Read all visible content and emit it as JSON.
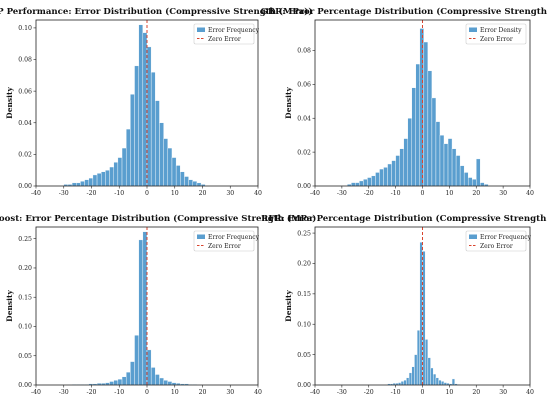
{
  "chart_data": [
    {
      "type": "bar",
      "title": "MLP Performance: Error Distribution (Compressive Strength (MPa))",
      "xlabel": "",
      "ylabel": "Density",
      "xlim": [
        -40,
        40
      ],
      "ylim": [
        0,
        0.105
      ],
      "xticks": [
        "-40",
        "-30",
        "-20",
        "-10",
        "0",
        "10",
        "20",
        "30",
        "40"
      ],
      "yticks": [
        "0.00",
        "0.02",
        "0.04",
        "0.06",
        "0.08",
        "0.10"
      ],
      "ytick_values": [
        0,
        0.02,
        0.04,
        0.06,
        0.08,
        0.1
      ],
      "bin_start": -30,
      "bin_width": 1.5,
      "values": [
        0.001,
        0.001,
        0.002,
        0.002,
        0.003,
        0.004,
        0.005,
        0.007,
        0.008,
        0.009,
        0.01,
        0.012,
        0.015,
        0.018,
        0.024,
        0.036,
        0.058,
        0.076,
        0.102,
        0.097,
        0.088,
        0.072,
        0.054,
        0.04,
        0.03,
        0.024,
        0.018,
        0.013,
        0.009,
        0.006,
        0.004,
        0.003,
        0.002,
        0.001
      ],
      "series": [
        {
          "name": "Error Frequency"
        },
        {
          "name": "Zero Error"
        }
      ],
      "legend_position": "top-right",
      "grid": false
    },
    {
      "type": "bar",
      "title": "GBR: Error Percentage Distribution (Compressive Strength (MPa))",
      "xlabel": "",
      "ylabel": "Density",
      "xlim": [
        -40,
        40
      ],
      "ylim": [
        0,
        0.098
      ],
      "xticks": [
        "-40",
        "-30",
        "-20",
        "-10",
        "0",
        "10",
        "20",
        "30",
        "40"
      ],
      "yticks": [
        "0.00",
        "0.02",
        "0.04",
        "0.06",
        "0.08"
      ],
      "ytick_values": [
        0,
        0.02,
        0.04,
        0.06,
        0.08
      ],
      "bin_start": -28,
      "bin_width": 1.5,
      "values": [
        0.001,
        0.002,
        0.002,
        0.003,
        0.004,
        0.005,
        0.006,
        0.008,
        0.01,
        0.011,
        0.013,
        0.015,
        0.018,
        0.022,
        0.028,
        0.04,
        0.058,
        0.072,
        0.093,
        0.085,
        0.068,
        0.052,
        0.038,
        0.03,
        0.025,
        0.028,
        0.022,
        0.018,
        0.012,
        0.008,
        0.005,
        0.004,
        0.016,
        0.002,
        0.001
      ],
      "series": [
        {
          "name": "Error Density"
        },
        {
          "name": "Zero Error"
        }
      ],
      "legend_position": "top-right",
      "grid": false
    },
    {
      "type": "bar",
      "title": "XGBoost: Error Percentage Distribution (Compressive Strength (MPa)",
      "xlabel": "",
      "ylabel": "Density",
      "xlim": [
        -40,
        40
      ],
      "ylim": [
        0,
        0.27
      ],
      "xticks": [
        "-40",
        "-30",
        "-20",
        "-10",
        "0",
        "10",
        "20",
        "30",
        "40"
      ],
      "yticks": [
        "0.00",
        "0.05",
        "0.10",
        "0.15",
        "0.20",
        "0.25"
      ],
      "ytick_values": [
        0,
        0.05,
        0.1,
        0.15,
        0.2,
        0.25
      ],
      "bin_start": -27,
      "bin_width": 1.5,
      "values": [
        0.001,
        0.001,
        0.001,
        0.001,
        0.002,
        0.002,
        0.003,
        0.003,
        0.004,
        0.006,
        0.008,
        0.01,
        0.014,
        0.022,
        0.04,
        0.085,
        0.248,
        0.262,
        0.06,
        0.03,
        0.018,
        0.012,
        0.008,
        0.006,
        0.004,
        0.003,
        0.002,
        0.002,
        0.001,
        0.001
      ],
      "series": [
        {
          "name": "Error Frequency"
        },
        {
          "name": "Zero Error"
        }
      ],
      "legend_position": "top-right",
      "grid": false
    },
    {
      "type": "bar",
      "title": "RFR: Error Percentage Distribution (Compressive Strength (MPa))",
      "xlabel": "",
      "ylabel": "Density",
      "xlim": [
        -40,
        40
      ],
      "ylim": [
        0,
        0.26
      ],
      "xticks": [
        "-40",
        "-30",
        "-20",
        "-10",
        "0",
        "10",
        "20",
        "30",
        "40"
      ],
      "yticks": [
        "0.00",
        "0.05",
        "0.10",
        "0.15",
        "0.20",
        "0.25"
      ],
      "ytick_values": [
        0,
        0.05,
        0.1,
        0.15,
        0.2,
        0.25
      ],
      "bin_start": -13,
      "bin_width": 1,
      "values": [
        0.002,
        0.002,
        0.003,
        0.003,
        0.004,
        0.006,
        0.008,
        0.012,
        0.02,
        0.03,
        0.05,
        0.09,
        0.235,
        0.22,
        0.075,
        0.045,
        0.028,
        0.018,
        0.012,
        0.008,
        0.006,
        0.004,
        0.003,
        0.002,
        0.01,
        0.002,
        0.001
      ],
      "series": [
        {
          "name": "Error Frequency"
        },
        {
          "name": "Zero Error"
        }
      ],
      "legend_position": "top-right",
      "grid": false
    }
  ],
  "colors": {
    "bar_fill": "#5a9ecf",
    "bar_edge": "#ffffff",
    "zero_line": "#d9452f"
  }
}
